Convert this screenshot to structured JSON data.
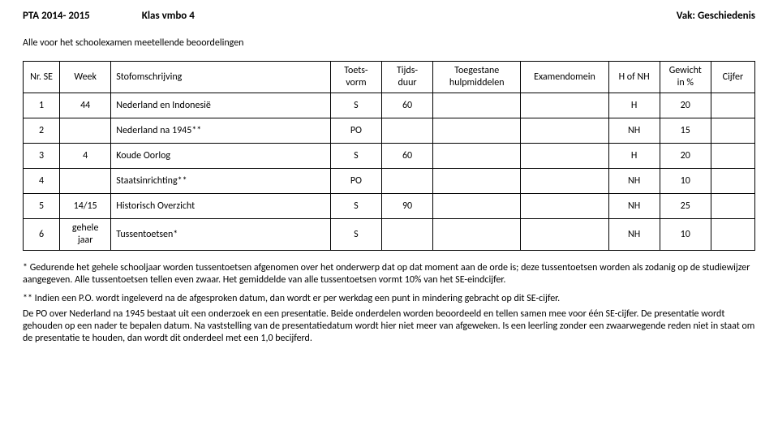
{
  "header": {
    "pta": "PTA 2014- 2015",
    "klas": "Klas vmbo 4",
    "vak": "Vak: Geschiedenis"
  },
  "subtitle": "Alle voor het schoolexamen meetellende beoordelingen",
  "table": {
    "columns": [
      "Nr. SE",
      "Week",
      "Stofomschrijving",
      "Toets-\nvorm",
      "Tijds-\nduur",
      "Toegestane hulpmiddelen",
      "Examendomein",
      "H of NH",
      "Gewicht in %",
      "Cijfer"
    ],
    "rows": [
      {
        "nr": "1",
        "week": "44",
        "stof": "Nederland en Indonesië",
        "vorm": "S",
        "duur": "60",
        "hulp": "",
        "dom": "",
        "hnh": "H",
        "gew": "20",
        "cijf": ""
      },
      {
        "nr": "2",
        "week": "",
        "stof": "Nederland na 1945**",
        "vorm": "PO",
        "duur": "",
        "hulp": "",
        "dom": "",
        "hnh": "NH",
        "gew": "15",
        "cijf": ""
      },
      {
        "nr": "3",
        "week": "4",
        "stof": "Koude Oorlog",
        "vorm": "S",
        "duur": "60",
        "hulp": "",
        "dom": "",
        "hnh": "H",
        "gew": "20",
        "cijf": ""
      },
      {
        "nr": "4",
        "week": "",
        "stof": "Staatsinrichting**",
        "vorm": "PO",
        "duur": "",
        "hulp": "",
        "dom": "",
        "hnh": "NH",
        "gew": "10",
        "cijf": ""
      },
      {
        "nr": "5",
        "week": "14/15",
        "stof": "Historisch Overzicht",
        "vorm": "S",
        "duur": "90",
        "hulp": "",
        "dom": "",
        "hnh": "NH",
        "gew": "25",
        "cijf": ""
      },
      {
        "nr": "6",
        "week": "gehele jaar",
        "stof": "Tussentoetsen*",
        "vorm": "S",
        "duur": "",
        "hulp": "",
        "dom": "",
        "hnh": "NH",
        "gew": "10",
        "cijf": ""
      }
    ]
  },
  "notes": {
    "p1": "* Gedurende het gehele schooljaar worden tussentoetsen afgenomen over het onderwerp dat op dat moment aan de orde is; deze tussentoetsen worden als zodanig op de studiewijzer aangegeven. Alle tussentoetsen tellen even zwaar. Het gemiddelde van alle tussentoetsen vormt 10% van het SE-eindcijfer.",
    "p2": "** Indien een P.O. wordt ingeleverd na de afgesproken datum, dan wordt er per werkdag een punt in mindering gebracht op dit SE-cijfer.",
    "p3": "De PO over Nederland na 1945 bestaat uit een onderzoek en een presentatie. Beide onderdelen worden beoordeeld en tellen samen mee voor één SE-cijfer. De presentatie wordt gehouden op een nader te bepalen datum. Na vaststelling van de presentatiedatum wordt hier niet meer van afgeweken. Is een leerling zonder een zwaarwegende reden niet in staat om de presentatie te houden, dan wordt dit onderdeel met een 1,0 becijferd."
  }
}
